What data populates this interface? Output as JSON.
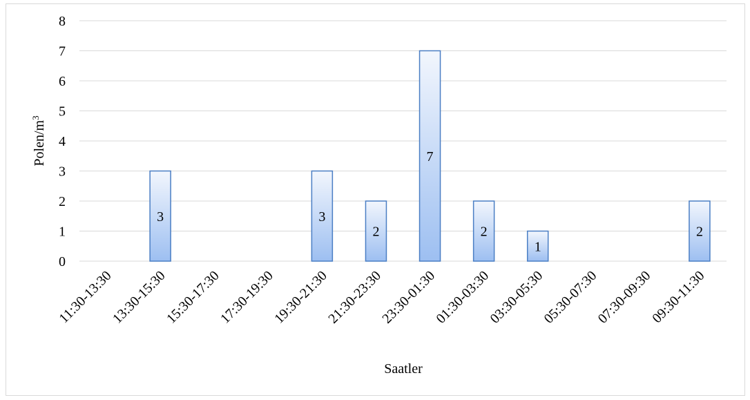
{
  "chart_data": {
    "type": "bar",
    "categories": [
      "11:30-13:30",
      "13:30-15:30",
      "15:30-17:30",
      "17:30-19:30",
      "19:30-21:30",
      "21:30-23:30",
      "23:30-01:30",
      "01:30-03:30",
      "03:30-05:30",
      "05:30-07:30",
      "07:30-09:30",
      "09:30-11:30"
    ],
    "values": [
      0,
      3,
      0,
      0,
      3,
      2,
      7,
      2,
      1,
      0,
      0,
      2
    ],
    "data_labels": [
      "",
      "3",
      "",
      "",
      "3",
      "2",
      "7",
      "2",
      "1",
      "",
      "",
      "2"
    ],
    "title": "",
    "xlabel": "Saatler",
    "ylabel": "Polen/m",
    "ylabel_superscript": "3",
    "ylim": [
      0,
      8
    ],
    "yticks": [
      "0",
      "1",
      "2",
      "3",
      "4",
      "5",
      "6",
      "7",
      "8"
    ],
    "grid": true,
    "legend": "none",
    "colors": {
      "bar_top": "#f2f6fd",
      "bar_bottom": "#9dbff1",
      "bar_stroke": "#4a7ec4",
      "grid": "#d9d9d9",
      "frame": "#d9d9d9"
    }
  }
}
